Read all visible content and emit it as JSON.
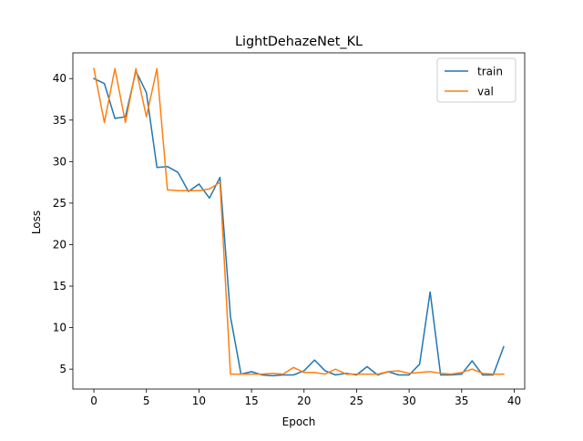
{
  "chart_data": {
    "type": "line",
    "title": "LightDehazeNet_KL",
    "xlabel": "Epoch",
    "ylabel": "Loss",
    "xlim": [
      -2,
      41
    ],
    "ylim": [
      2.6,
      43.1
    ],
    "xticks": [
      0,
      5,
      10,
      15,
      20,
      25,
      30,
      35,
      40
    ],
    "yticks": [
      5,
      10,
      15,
      20,
      25,
      30,
      35,
      40
    ],
    "grid": false,
    "legend_position": "top-right",
    "x": [
      0,
      1,
      2,
      3,
      4,
      5,
      6,
      7,
      8,
      9,
      10,
      11,
      12,
      13,
      14,
      15,
      16,
      17,
      18,
      19,
      20,
      21,
      22,
      23,
      24,
      25,
      26,
      27,
      28,
      29,
      30,
      31,
      32,
      33,
      34,
      35,
      36,
      37,
      38,
      39
    ],
    "series": [
      {
        "name": "train",
        "color": "#1f77b4",
        "values": [
          40.0,
          39.4,
          35.2,
          35.4,
          40.9,
          38.3,
          29.3,
          29.4,
          28.7,
          26.4,
          27.3,
          25.6,
          28.1,
          11.3,
          4.4,
          4.7,
          4.3,
          4.2,
          4.3,
          4.3,
          4.8,
          6.1,
          4.8,
          4.3,
          4.5,
          4.3,
          5.3,
          4.3,
          4.7,
          4.3,
          4.3,
          5.6,
          14.3,
          4.3,
          4.3,
          4.4,
          6.0,
          4.3,
          4.3,
          7.7
        ]
      },
      {
        "name": "val",
        "color": "#ff7f0e",
        "values": [
          41.2,
          34.7,
          41.2,
          34.7,
          41.2,
          35.4,
          41.2,
          26.6,
          26.5,
          26.5,
          26.5,
          26.7,
          27.5,
          4.4,
          4.4,
          4.4,
          4.4,
          4.5,
          4.4,
          5.2,
          4.6,
          4.6,
          4.4,
          5.0,
          4.4,
          4.4,
          4.4,
          4.4,
          4.7,
          4.8,
          4.5,
          4.6,
          4.7,
          4.5,
          4.4,
          4.6,
          5.0,
          4.5,
          4.4,
          4.4
        ]
      }
    ]
  }
}
